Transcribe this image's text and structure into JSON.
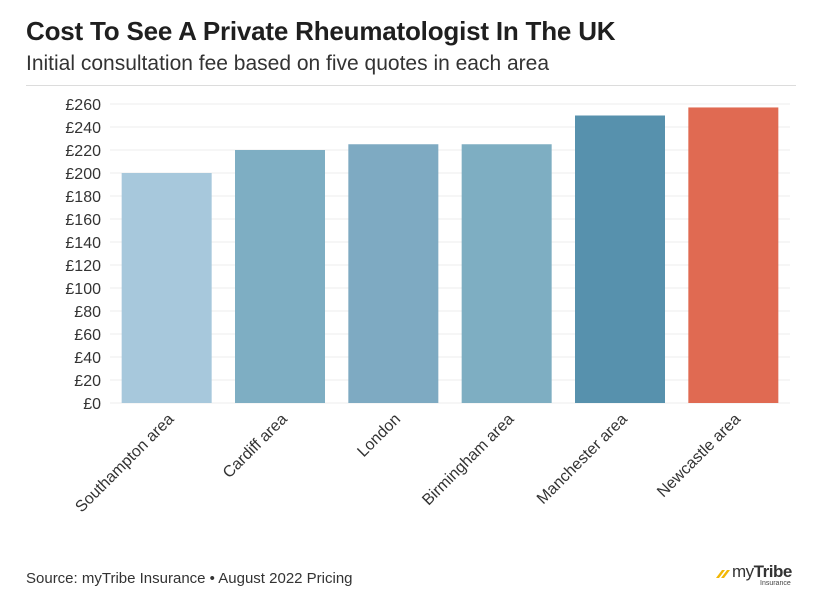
{
  "chart_data": {
    "type": "bar",
    "title": "Cost To See A Private Rheumatologist In The UK",
    "subtitle": "Initial consultation fee based on five quotes in each area",
    "categories": [
      "Southampton area",
      "Cardiff area",
      "London",
      "Birmingham area",
      "Manchester area",
      "Newcastle area"
    ],
    "values": [
      200,
      220,
      225,
      225,
      250,
      257
    ],
    "bar_colors": [
      "#a7c8dc",
      "#7eaec3",
      "#7eaac2",
      "#7eaec2",
      "#5791ad",
      "#e06a52"
    ],
    "ylim": [
      0,
      260
    ],
    "yticks": [
      0,
      20,
      40,
      60,
      80,
      100,
      120,
      140,
      160,
      180,
      200,
      220,
      240,
      260
    ],
    "tick_prefix": "£",
    "xlabel": "",
    "ylabel": "",
    "grid": true
  },
  "footer": {
    "source": "Source: myTribe Insurance • August 2022 Pricing"
  },
  "logo": {
    "name_light": "my",
    "name_bold": "Tribe",
    "sub": "Insurance",
    "accent_color": "#f2b705"
  }
}
